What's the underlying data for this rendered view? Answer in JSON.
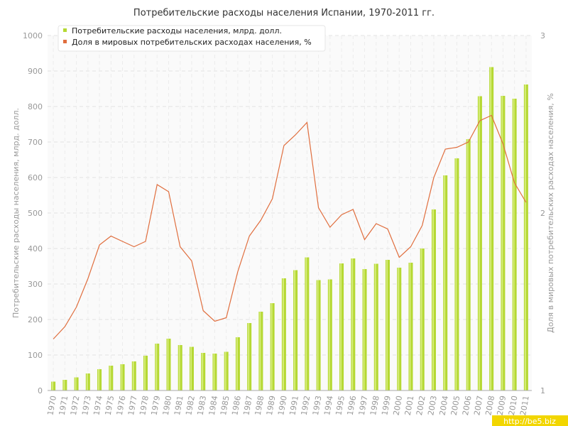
{
  "chart_data": {
    "type": "bar",
    "title": "Потребительские расходы населения Испании, 1970-2011 гг.",
    "categories": [
      "1970",
      "1971",
      "1972",
      "1973",
      "1974",
      "1975",
      "1976",
      "1977",
      "1978",
      "1979",
      "1980",
      "1981",
      "1982",
      "1983",
      "1984",
      "1985",
      "1986",
      "1987",
      "1988",
      "1989",
      "1990",
      "1991",
      "1992",
      "1993",
      "1994",
      "1995",
      "1996",
      "1997",
      "1998",
      "1999",
      "2000",
      "2001",
      "2002",
      "2003",
      "2004",
      "2005",
      "2006",
      "2007",
      "2008",
      "2009",
      "2010",
      "2011"
    ],
    "series": [
      {
        "name": "Потребительские расходы населения, млрд. долл.",
        "type": "bar",
        "axis": "left",
        "color": "#b5d833",
        "values": [
          25,
          30,
          37,
          48,
          60,
          70,
          74,
          82,
          98,
          132,
          146,
          128,
          123,
          106,
          104,
          109,
          150,
          190,
          222,
          246,
          316,
          339,
          375,
          311,
          313,
          358,
          372,
          342,
          357,
          368,
          346,
          360,
          400,
          510,
          606,
          654,
          708,
          829,
          911,
          830,
          822,
          862
        ]
      },
      {
        "name": "Доля в мировых потребительских расходах населения, %",
        "type": "line",
        "axis": "right",
        "color": "#e06e3e",
        "values": [
          1.29,
          1.36,
          1.47,
          1.63,
          1.82,
          1.87,
          1.84,
          1.81,
          1.84,
          2.16,
          2.12,
          1.81,
          1.73,
          1.45,
          1.39,
          1.41,
          1.67,
          1.87,
          1.96,
          2.08,
          2.38,
          2.44,
          2.51,
          2.03,
          1.92,
          1.99,
          2.02,
          1.85,
          1.94,
          1.91,
          1.75,
          1.81,
          1.93,
          2.2,
          2.36,
          2.37,
          2.4,
          2.52,
          2.55,
          2.39,
          2.17,
          2.06
        ]
      }
    ],
    "ylabel": "Потребительские расходы населения, млрд. долл.",
    "y2label": "Доля в мировых потребительских расходах населения, %",
    "ylim": [
      0,
      1000
    ],
    "y2lim": [
      1,
      3
    ],
    "yticks": [
      "0",
      "100",
      "200",
      "300",
      "400",
      "500",
      "600",
      "700",
      "800",
      "900",
      "1000"
    ],
    "y2ticks": [
      "1",
      "2",
      "3"
    ],
    "grid": true,
    "legend_position": "top-left"
  },
  "watermark": "http://be5.biz"
}
